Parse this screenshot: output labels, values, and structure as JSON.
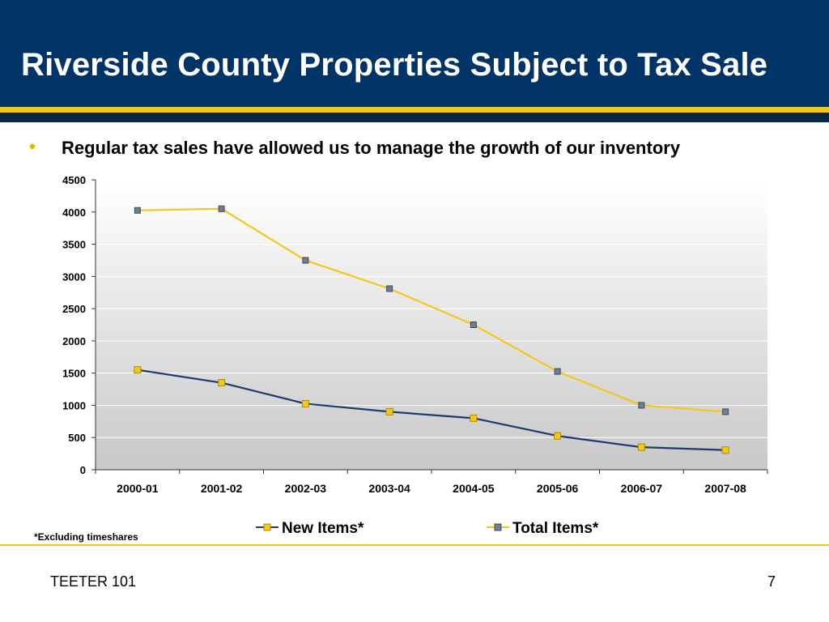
{
  "slide": {
    "title": "Riverside County Properties Subject to Tax Sale",
    "bullet": "Regular tax sales have allowed us to manage the growth of our inventory",
    "footnote": "*Excluding timeshares",
    "footer_left": "TEETER 101",
    "page_number": "7"
  },
  "colors": {
    "header_bg": "#003366",
    "accent_gold": "#f2c81a",
    "new_items_line": "#1f3a6b",
    "new_items_marker": "#f2c81a",
    "total_items_line": "#f2c81a",
    "total_items_marker": "#6f7f92"
  },
  "chart_data": {
    "type": "line",
    "title": "",
    "xlabel": "",
    "ylabel": "",
    "categories": [
      "2000-01",
      "2001-02",
      "2002-03",
      "2003-04",
      "2004-05",
      "2005-06",
      "2006-07",
      "2007-08"
    ],
    "ylim": [
      0,
      4500
    ],
    "yticks": [
      0,
      500,
      1000,
      1500,
      2000,
      2500,
      3000,
      3500,
      4000,
      4500
    ],
    "grid": true,
    "legend_position": "bottom",
    "series": [
      {
        "name": "New Items*",
        "values": [
          1550,
          1350,
          1025,
          900,
          800,
          525,
          350,
          305
        ]
      },
      {
        "name": "Total Items*",
        "values": [
          4025,
          4050,
          3250,
          2810,
          2250,
          1525,
          1000,
          900
        ]
      }
    ]
  }
}
